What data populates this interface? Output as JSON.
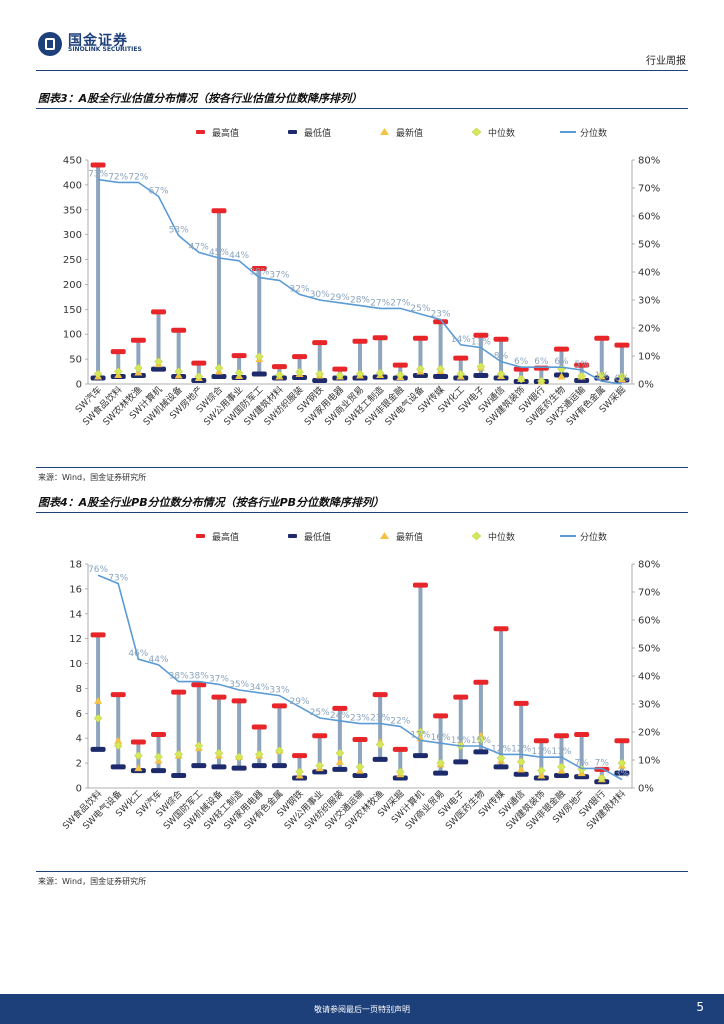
{
  "header": {
    "logo_cn": "国金证券",
    "logo_en": "SINOLINK SECURITIES",
    "doc_type": "行业周报"
  },
  "footer": {
    "disclaimer": "敬请参阅最后一页特别声明",
    "page_number": "5"
  },
  "colors": {
    "max_marker": "#e8262a",
    "min_marker": "#1d2a6b",
    "latest_marker": "#f5c242",
    "median_marker": "#d6e85a",
    "percentile_line": "#5b9bd5",
    "range_bar": "#8ea5bd",
    "brand": "#1d3f7a"
  },
  "chart_data": [
    {
      "title": "图表3：A股全行业估值分布情况（按各行业估值分位数降序排列）",
      "source": "来源：Wind，国金证券研究所",
      "type": "bar",
      "legend": [
        "最高值",
        "最低值",
        "最新值",
        "中位数",
        "分位数"
      ],
      "ylim_left": [
        0,
        450
      ],
      "yticks_left": [
        "0",
        "50",
        "100",
        "150",
        "200",
        "250",
        "300",
        "350",
        "400",
        "450"
      ],
      "ylim_right": [
        0,
        0.8
      ],
      "yticks_right": [
        "0%",
        "10%",
        "20%",
        "30%",
        "40%",
        "50%",
        "60%",
        "70%",
        "80%"
      ],
      "categories": [
        "SW汽车",
        "SW食品饮料",
        "SW农林牧渔",
        "SW计算机",
        "SW机械设备",
        "SW房地产",
        "SW综合",
        "SW公用事业",
        "SW国防军工",
        "SW建筑材料",
        "SW纺织服装",
        "SW钢铁",
        "SW家用电器",
        "SW商业贸易",
        "SW轻工制造",
        "SW非银金融",
        "SW电气设备",
        "SW传媒",
        "SW化工",
        "SW电子",
        "SW通信",
        "SW建筑装饰",
        "SW银行",
        "SW医药生物",
        "SW交通运输",
        "SW有色金属",
        "SW采掘"
      ],
      "max": [
        440,
        65,
        88,
        145,
        108,
        42,
        348,
        57,
        232,
        35,
        55,
        83,
        30,
        86,
        93,
        38,
        92,
        125,
        52,
        98,
        90,
        30,
        32,
        70,
        38,
        92,
        78
      ],
      "min": [
        12,
        15,
        17,
        30,
        15,
        7,
        15,
        13,
        20,
        12,
        13,
        7,
        12,
        12,
        14,
        12,
        17,
        15,
        12,
        17,
        12,
        5,
        5,
        18,
        7,
        12,
        8
      ],
      "latest": [
        15,
        18,
        23,
        40,
        17,
        12,
        25,
        16,
        50,
        15,
        20,
        17,
        15,
        17,
        18,
        14,
        25,
        26,
        15,
        33,
        16,
        10,
        5,
        15,
        15,
        15,
        10
      ],
      "median": [
        20,
        25,
        32,
        45,
        25,
        15,
        32,
        22,
        55,
        18,
        24,
        20,
        17,
        20,
        22,
        18,
        30,
        30,
        20,
        35,
        20,
        10,
        6,
        30,
        16,
        18,
        15
      ],
      "percentile": [
        0.73,
        0.72,
        0.72,
        0.67,
        0.53,
        0.47,
        0.45,
        0.44,
        0.38,
        0.37,
        0.32,
        0.3,
        0.29,
        0.28,
        0.27,
        0.27,
        0.25,
        0.23,
        0.14,
        0.13,
        0.08,
        0.06,
        0.06,
        0.06,
        0.05,
        0.01,
        0.0
      ],
      "percentile_labels": [
        "73%",
        "72%",
        "72%",
        "67%",
        "53%",
        "47%",
        "45%",
        "44%",
        "38%",
        "37%",
        "32%",
        "30%",
        "29%",
        "28%",
        "27%",
        "27%",
        "25%",
        "23%",
        "14%",
        "13%",
        "8%",
        "6%",
        "6%",
        "6%",
        "5%",
        "1%",
        "0%"
      ]
    },
    {
      "title": "图表4：A股全行业PB分位数分布情况（按各行业PB分位数降序排列）",
      "source": "来源：Wind，国金证券研究所",
      "type": "bar",
      "legend": [
        "最高值",
        "最低值",
        "最新值",
        "中位数",
        "分位数"
      ],
      "ylim_left": [
        0,
        18
      ],
      "yticks_left": [
        "0",
        "2",
        "4",
        "6",
        "8",
        "10",
        "12",
        "14",
        "16",
        "18"
      ],
      "ylim_right": [
        0,
        0.8
      ],
      "yticks_right": [
        "0%",
        "10%",
        "20%",
        "30%",
        "40%",
        "50%",
        "60%",
        "70%",
        "80%"
      ],
      "categories": [
        "SW食品饮料",
        "SW电气设备",
        "SW化工",
        "SW汽车",
        "SW综合",
        "SW国防军工",
        "SW机械设备",
        "SW轻工制造",
        "SW家用电器",
        "SW有色金属",
        "SW钢铁",
        "SW公用事业",
        "SW纺织服装",
        "SW交通运输",
        "SW农林牧渔",
        "SW采掘",
        "SW计算机",
        "SW商业贸易",
        "SW电子",
        "SW医药生物",
        "SW传媒",
        "SW通信",
        "SW建筑装饰",
        "SW非银金融",
        "SW房地产",
        "SW银行",
        "SW建筑材料"
      ],
      "max": [
        12.3,
        7.5,
        3.7,
        4.3,
        7.7,
        8.3,
        7.3,
        7.0,
        4.9,
        6.6,
        2.6,
        4.2,
        6.4,
        3.9,
        7.5,
        3.1,
        16.3,
        5.8,
        7.3,
        8.5,
        12.8,
        6.8,
        3.8,
        4.2,
        4.3,
        1.5,
        3.8
      ],
      "min": [
        3.1,
        1.7,
        1.4,
        1.4,
        1.0,
        1.8,
        1.7,
        1.6,
        1.8,
        1.8,
        0.8,
        1.3,
        1.5,
        1.0,
        2.3,
        0.8,
        2.6,
        1.2,
        2.1,
        2.9,
        1.7,
        1.1,
        0.8,
        1.0,
        0.9,
        0.5,
        1.2
      ],
      "latest": [
        7.0,
        3.8,
        1.6,
        2.2,
        2.6,
        3.2,
        2.6,
        2.5,
        2.6,
        3.0,
        1.0,
        1.6,
        2.1,
        1.4,
        3.7,
        1.1,
        4.0,
        1.9,
        3.6,
        4.2,
        2.2,
        1.5,
        1.0,
        1.4,
        1.2,
        0.7,
        1.8
      ],
      "median": [
        5.6,
        3.4,
        2.6,
        2.5,
        2.7,
        3.4,
        2.8,
        2.5,
        2.7,
        3.0,
        1.3,
        1.8,
        2.8,
        1.7,
        3.5,
        1.3,
        4.5,
        2.0,
        3.4,
        3.9,
        2.4,
        2.1,
        1.4,
        1.7,
        1.5,
        0.8,
        2.0
      ],
      "percentile": [
        0.76,
        0.73,
        0.46,
        0.44,
        0.38,
        0.38,
        0.37,
        0.35,
        0.34,
        0.33,
        0.29,
        0.25,
        0.24,
        0.23,
        0.23,
        0.22,
        0.17,
        0.16,
        0.15,
        0.15,
        0.12,
        0.12,
        0.11,
        0.11,
        0.07,
        0.07,
        0.03
      ],
      "percentile_labels": [
        "76%",
        "73%",
        "46%",
        "44%",
        "38%",
        "38%",
        "37%",
        "35%",
        "34%",
        "33%",
        "29%",
        "25%",
        "24%",
        "23%",
        "23%",
        "22%",
        "17%",
        "16%",
        "15%",
        "15%",
        "12%",
        "12%",
        "11%",
        "11%",
        "7%",
        "7%",
        "3%"
      ]
    }
  ]
}
